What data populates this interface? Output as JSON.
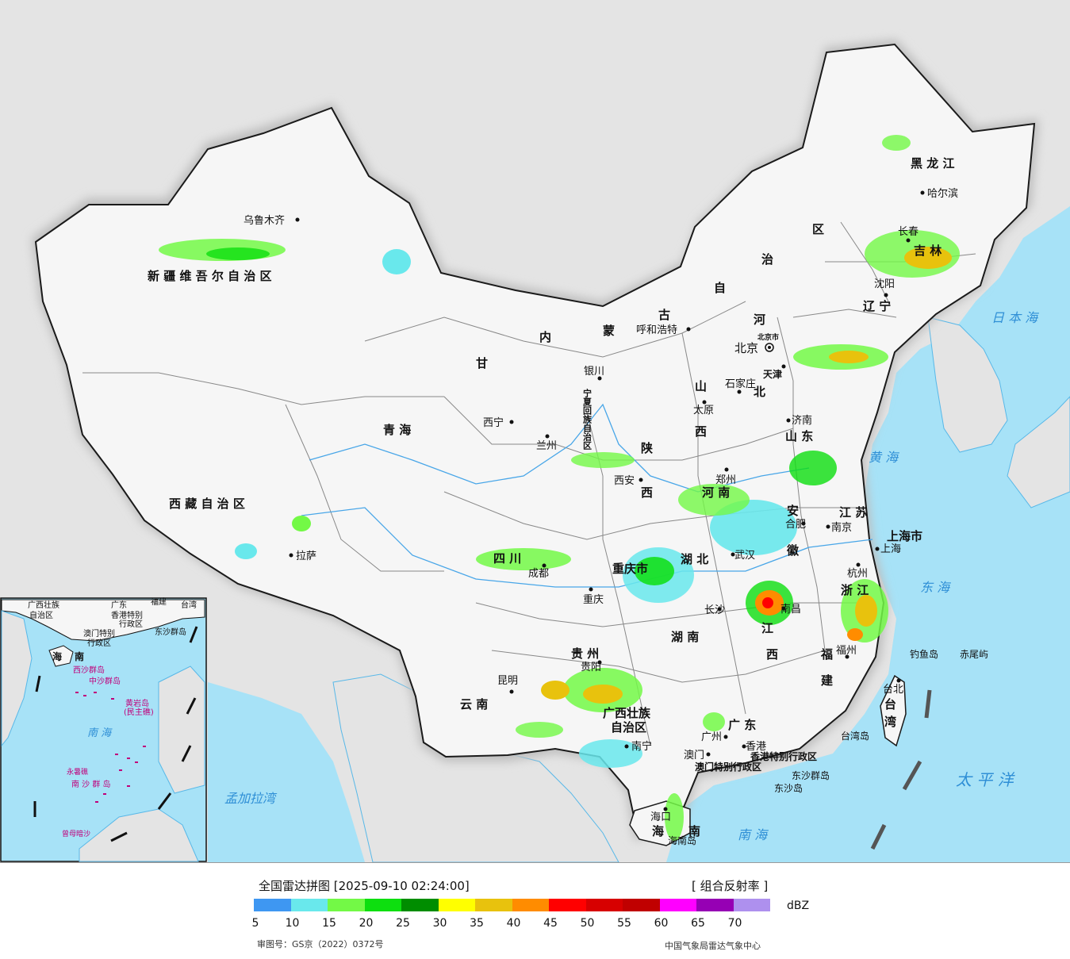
{
  "legend": {
    "title": "全国雷达拼图 [2025-09-10 02:24:00]",
    "product": "[ 组合反射率 ]",
    "unit": "dBZ",
    "approval": "审图号：GS京（2022）0372号",
    "source": "中国气象局雷达气象中心",
    "scale": [
      {
        "value": "5",
        "color": "#3e97f2"
      },
      {
        "value": "10",
        "color": "#69e8ec"
      },
      {
        "value": "15",
        "color": "#73f946"
      },
      {
        "value": "20",
        "color": "#0ddf0f"
      },
      {
        "value": "25",
        "color": "#008d00"
      },
      {
        "value": "30",
        "color": "#ffff00"
      },
      {
        "value": "35",
        "color": "#e8c20d"
      },
      {
        "value": "40",
        "color": "#ff8c00"
      },
      {
        "value": "45",
        "color": "#ff0000"
      },
      {
        "value": "50",
        "color": "#d70000"
      },
      {
        "value": "55",
        "color": "#c00000"
      },
      {
        "value": "60",
        "color": "#ff00ff"
      },
      {
        "value": "65",
        "color": "#9600b4"
      },
      {
        "value": "70",
        "color": "#ae90ee"
      }
    ]
  },
  "regions": {
    "xinjiang": "新 疆 维 吾 尔 自 治 区",
    "xizang": "西 藏 自 治 区",
    "qinghai": "青       海",
    "gansu": "甘",
    "neimenggu_1": "内",
    "neimenggu_2": "蒙",
    "neimenggu_3": "古",
    "neimenggu_4": "自",
    "neimenggu_5": "治",
    "neimenggu_6": "区",
    "heilongjiang": "黑    龙    江",
    "jilin": "吉  林",
    "liaoning": "辽  宁",
    "hebei_1": "河",
    "hebei_2": "北",
    "shanxi_1": "山",
    "shanxi_2": "西",
    "shandong": "山  东",
    "henan": "河    南",
    "shaanxi_1": "陕",
    "shaanxi_2": "西",
    "sichuan": "四    川",
    "chongqing": "重庆市",
    "hubei": "湖    北",
    "anhui_1": "安",
    "anhui_2": "徽",
    "jiangsu": "江  苏",
    "shanghai": "上海市",
    "zhejiang": "浙  江",
    "jiangxi_1": "江",
    "jiangxi_2": "西",
    "hunan": "湖    南",
    "guizhou": "贵  州",
    "yunnan": "云    南",
    "guangxi_1": "广西壮族",
    "guangxi_2": "自治区",
    "guangdong": "广    东",
    "fujian_1": "福",
    "fujian_2": "建",
    "taiwan_1": "台",
    "taiwan_2": "湾",
    "hainan_1": "海",
    "hainan_2": "南",
    "ningxia": "宁夏回族自治区",
    "tianjin": "天津",
    "beijing_small": "北京市",
    "hk": "香港特别行政区",
    "macao": "澳门特别行政区"
  },
  "cities": {
    "urumqi": "乌鲁木齐",
    "lhasa": "拉萨",
    "xining": "西宁",
    "lanzhou": "兰州",
    "yinchuan": "银川",
    "hohhot": "呼和浩特",
    "beijing": "北京",
    "tianjin": "天津",
    "shijiazhuang": "石家庄",
    "taiyuan": "太原",
    "jinan": "济南",
    "zhengzhou": "郑州",
    "xian": "西安",
    "chengdu": "成都",
    "chongqing": "重庆",
    "wuhan": "武汉",
    "hefei": "合肥",
    "nanjing": "南京",
    "shanghai": "上海",
    "hangzhou": "杭州",
    "nanchang": "南昌",
    "changsha": "长沙",
    "guiyang": "贵阳",
    "kunming": "昆明",
    "nanning": "南宁",
    "guangzhou": "广州",
    "hongkong": "香港",
    "macau": "澳门",
    "fuzhou": "福州",
    "taipei": "台北",
    "haikou": "海口",
    "harbin": "哈尔滨",
    "changchun": "长春",
    "shenyang": "沈阳"
  },
  "seas": {
    "japan_sea": "日 本 海",
    "yellow_sea": "黄  海",
    "east_sea": "东  海",
    "pacific": "太  平  洋",
    "south_sea": "南    海",
    "bengal": "孟加拉湾"
  },
  "islands": {
    "diaoyu": "钓鱼岛",
    "chiwei": "赤尾屿",
    "taiwan_island": "台湾岛",
    "hainan_island": "海南岛",
    "dongsha_islands": "东沙群岛",
    "dongsha_island": "东沙岛"
  },
  "inset": {
    "guangxi": "广西壮族",
    "guangxi_zz": "自治区",
    "guangdong": "广东",
    "fujian": "福建",
    "taiwan": "台湾",
    "hk": "香港特别",
    "hk2": "行政区",
    "macao": "澳门特别",
    "macao2": "行政区",
    "dongsha": "东沙群岛",
    "hainan": "海",
    "hainan2": "南",
    "xisha": "西沙群岛",
    "zhongsha": "中沙群岛",
    "huangyan": "黄岩岛",
    "huangyan2": "(民主礁)",
    "south_sea": "南    海",
    "nansha": "南 沙 群 岛",
    "yongshu": "永暑礁",
    "zengmu": "曾母暗沙"
  }
}
